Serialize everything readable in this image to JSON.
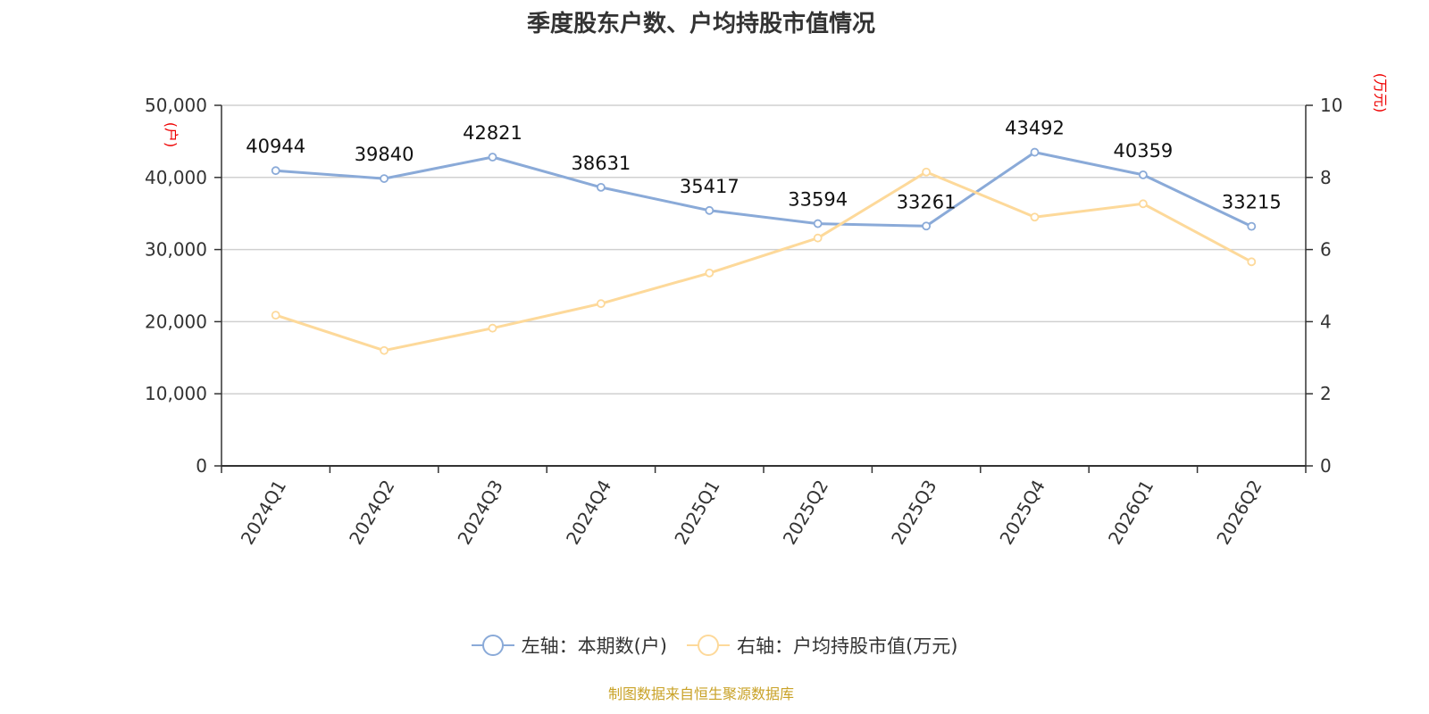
{
  "title": "季度股东户数、户均持股市值情况",
  "source": "制图数据来自恒生聚源数据库",
  "colors": {
    "left_series": "#8aaad8",
    "right_series": "#fdd99a",
    "unit_text": "#ee0000",
    "source_text": "#c9a227"
  },
  "chart_data": {
    "type": "line",
    "categories": [
      "2024Q1",
      "2024Q2",
      "2024Q3",
      "2024Q4",
      "2025Q1",
      "2025Q2",
      "2025Q3",
      "2025Q4",
      "2026Q1",
      "2026Q2"
    ],
    "y_left": {
      "unit": "(户)",
      "range": [
        0,
        50000
      ],
      "ticks": [
        "0",
        "10,000",
        "20,000",
        "30,000",
        "40,000",
        "50,000"
      ]
    },
    "y_right": {
      "unit": "(万元)",
      "range": [
        0,
        10
      ],
      "ticks": [
        "0",
        "2",
        "4",
        "6",
        "8",
        "10"
      ]
    },
    "grid": true,
    "legend_position": "bottom",
    "series": [
      {
        "name": "左轴：本期数(户)",
        "axis": "left",
        "values": [
          40944,
          39840,
          42821,
          38631,
          35417,
          33594,
          33261,
          43492,
          40359,
          33215
        ],
        "labels": [
          "40944",
          "39840",
          "42821",
          "38631",
          "35417",
          "33594",
          "33261",
          "43492",
          "40359",
          "33215"
        ]
      },
      {
        "name": "右轴：户均持股市值(万元)",
        "axis": "right",
        "values": [
          4.18,
          3.2,
          3.82,
          4.5,
          5.35,
          6.32,
          8.15,
          6.9,
          7.27,
          5.66
        ]
      }
    ]
  }
}
